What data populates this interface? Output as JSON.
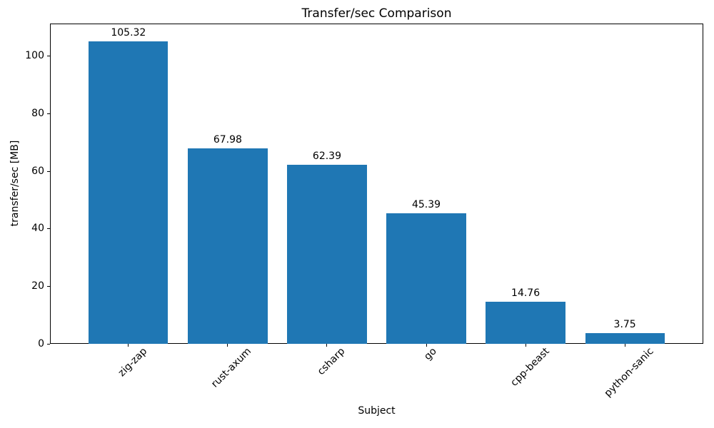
{
  "chart_data": {
    "type": "bar",
    "title": "Transfer/sec Comparison",
    "xlabel": "Subject",
    "ylabel": "transfer/sec [MB]",
    "categories": [
      "zig-zap",
      "rust-axum",
      "csharp",
      "go",
      "cpp-beast",
      "python-sanic"
    ],
    "values": [
      105.32,
      67.98,
      62.39,
      45.39,
      14.76,
      3.75
    ],
    "value_labels": [
      "105.32",
      "67.98",
      "62.39",
      "45.39",
      "14.76",
      "3.75"
    ],
    "yticks": [
      0,
      20,
      40,
      60,
      80,
      100
    ],
    "ylim": [
      0,
      111.4
    ],
    "xtick_rotation": 45,
    "bar_color": "#1f77b4",
    "text_color": "#000000",
    "background_color": "#ffffff",
    "grid": false,
    "legend": null
  }
}
